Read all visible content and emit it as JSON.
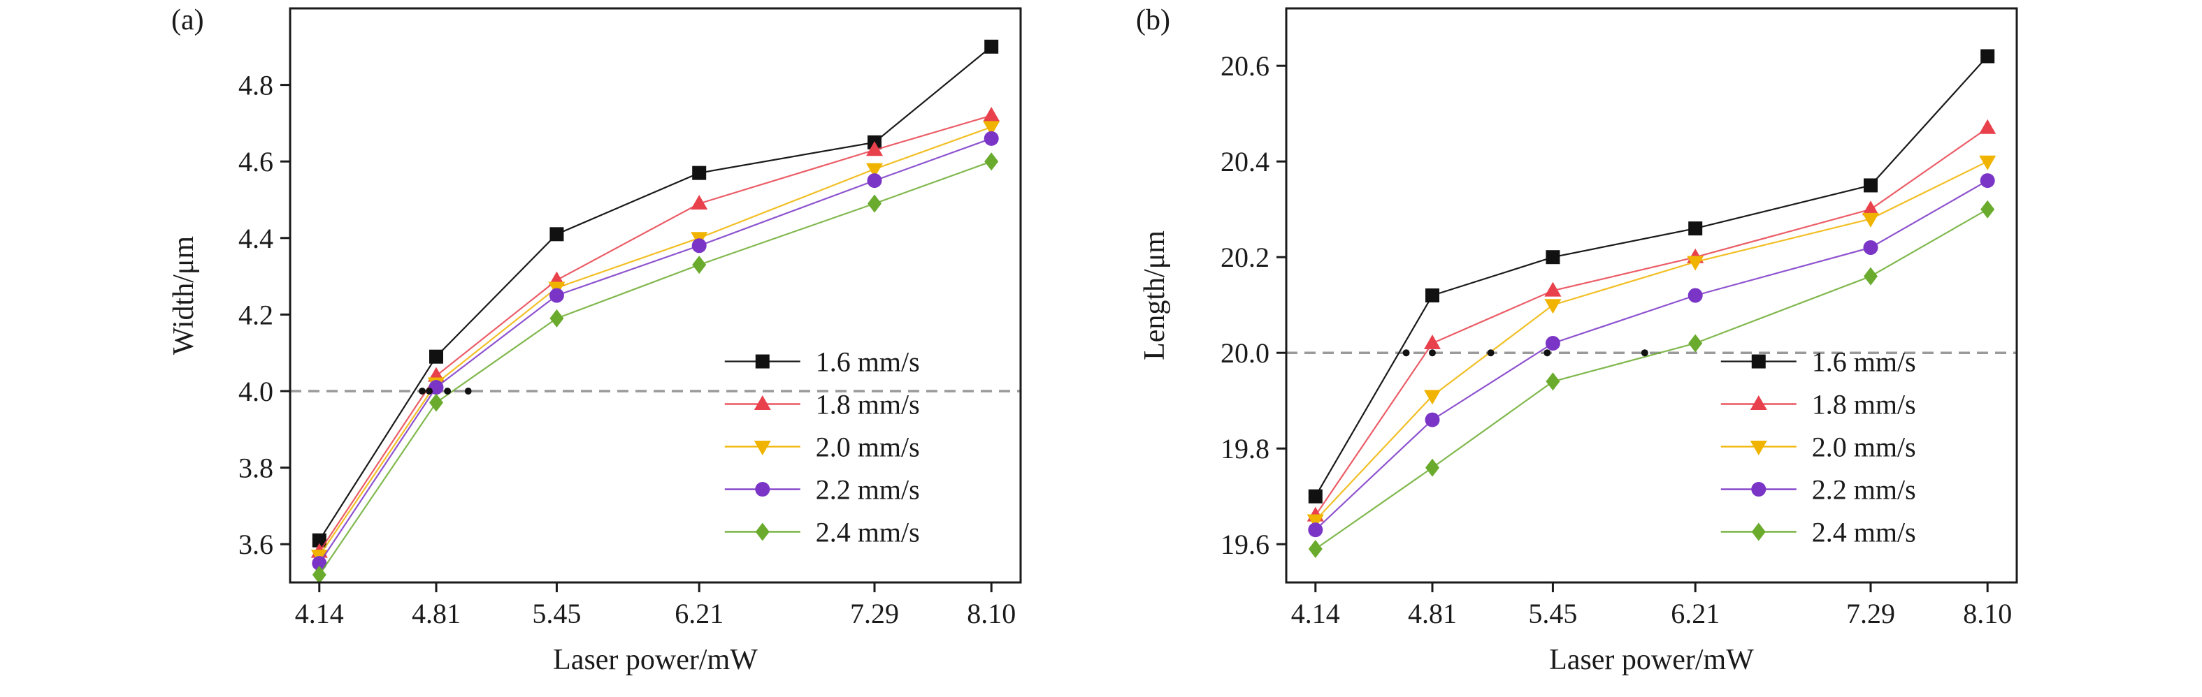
{
  "chart_data": [
    {
      "type": "line",
      "panel_label": "(a)",
      "categories": [
        "4.14",
        "4.81",
        "5.45",
        "6.21",
        "7.29",
        "8.10"
      ],
      "xlabel": "Laser power/mW",
      "ylabel": "Width/μm",
      "ylim": [
        3.5,
        5.0
      ],
      "yticks": [
        "3.6",
        "3.8",
        "4.0",
        "4.2",
        "4.4",
        "4.6",
        "4.8"
      ],
      "reference_line": 4.0,
      "reference_points": [
        {
          "x": 4.73,
          "y": 4.0
        },
        {
          "x": 4.77,
          "y": 4.0
        },
        {
          "x": 4.87,
          "y": 4.0
        },
        {
          "x": 4.98,
          "y": 4.0
        }
      ],
      "legend_position": "bottom-right",
      "series": [
        {
          "name": "1.6 mm/s",
          "marker": "square",
          "color": "#111111",
          "values": [
            3.61,
            4.09,
            4.41,
            4.57,
            4.65,
            4.9
          ]
        },
        {
          "name": "1.8 mm/s",
          "marker": "triangle-up",
          "color": "#e8414c",
          "values": [
            3.58,
            4.04,
            4.29,
            4.49,
            4.63,
            4.72
          ]
        },
        {
          "name": "2.0 mm/s",
          "marker": "triangle-down",
          "color": "#f0b400",
          "values": [
            3.57,
            4.02,
            4.27,
            4.4,
            4.58,
            4.69
          ]
        },
        {
          "name": "2.2 mm/s",
          "marker": "circle",
          "color": "#7a35c7",
          "values": [
            3.55,
            4.01,
            4.25,
            4.38,
            4.55,
            4.66
          ]
        },
        {
          "name": "2.4 mm/s",
          "marker": "diamond",
          "color": "#6aab2e",
          "values": [
            3.52,
            3.97,
            4.19,
            4.33,
            4.49,
            4.6
          ]
        }
      ]
    },
    {
      "type": "line",
      "panel_label": "(b)",
      "categories": [
        "4.14",
        "4.81",
        "5.45",
        "6.21",
        "7.29",
        "8.10"
      ],
      "xlabel": "Laser power/mW",
      "ylabel": "Length/μm",
      "ylim": [
        19.52,
        20.72
      ],
      "yticks": [
        "19.6",
        "19.8",
        "20.0",
        "20.2",
        "20.4",
        "20.6"
      ],
      "reference_line": 20.0,
      "reference_points": [
        {
          "x": 4.66,
          "y": 20.0
        },
        {
          "x": 4.81,
          "y": 20.0
        },
        {
          "x": 5.12,
          "y": 20.0
        },
        {
          "x": 5.42,
          "y": 20.0
        },
        {
          "x": 5.94,
          "y": 20.0
        }
      ],
      "legend_position": "bottom-right",
      "series": [
        {
          "name": "1.6 mm/s",
          "marker": "square",
          "color": "#111111",
          "values": [
            19.7,
            20.12,
            20.2,
            20.26,
            20.35,
            20.62
          ]
        },
        {
          "name": "1.8 mm/s",
          "marker": "triangle-up",
          "color": "#e8414c",
          "values": [
            19.66,
            20.02,
            20.13,
            20.2,
            20.3,
            20.47
          ]
        },
        {
          "name": "2.0 mm/s",
          "marker": "triangle-down",
          "color": "#f0b400",
          "values": [
            19.65,
            19.91,
            20.1,
            20.19,
            20.28,
            20.4
          ]
        },
        {
          "name": "2.2 mm/s",
          "marker": "circle",
          "color": "#7a35c7",
          "values": [
            19.63,
            19.86,
            20.02,
            20.12,
            20.22,
            20.36
          ]
        },
        {
          "name": "2.4 mm/s",
          "marker": "diamond",
          "color": "#6aab2e",
          "values": [
            19.59,
            19.76,
            19.94,
            20.02,
            20.16,
            20.3
          ]
        }
      ]
    }
  ]
}
